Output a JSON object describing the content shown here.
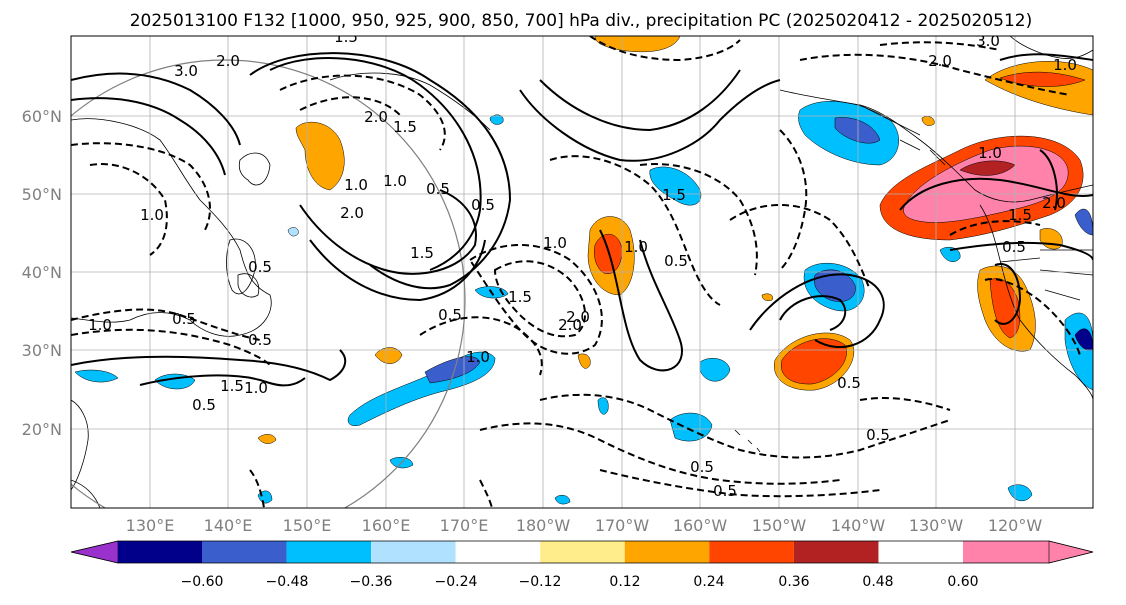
{
  "title": "2025013100 F132 [1000, 950, 925, 900, 850, 700] hPa div., precipitation PC (2025020412 - 2025020512)",
  "lat_labels": [
    "60°N",
    "50°N",
    "40°N",
    "30°N",
    "20°N"
  ],
  "lon_labels": [
    "130°E",
    "140°E",
    "150°E",
    "160°E",
    "170°E",
    "180°W",
    "170°W",
    "160°W",
    "150°W",
    "140°W",
    "130°W",
    "120°W"
  ],
  "contour_labels": [
    "3.0",
    "2.0",
    "1.5",
    "2.0",
    "1.5",
    "0.5",
    "1.0",
    "0.5",
    "1.0",
    "1.5",
    "2.0",
    "0.5",
    "1.0",
    "0.5",
    "0.5",
    "1.0",
    "1.5",
    "0.5",
    "1.0",
    "2.0",
    "1.0",
    "1.5",
    "0.5",
    "1.0",
    "1.5",
    "0.5",
    "0.5",
    "0.5",
    "0.5",
    "0.5",
    "2.0",
    "1.0",
    "1.5",
    "2.0",
    "0.5",
    "1.0",
    "3.0",
    "2.0",
    "1.0"
  ],
  "colorbar": {
    "ticks": [
      "−0.60",
      "−0.48",
      "−0.36",
      "−0.24",
      "−0.12",
      "0.12",
      "0.24",
      "0.36",
      "0.48",
      "0.60"
    ],
    "colors": [
      "#9932cc",
      "#00008b",
      "#3a5fcd",
      "#00bfff",
      "#b0e2ff",
      "#ffffff",
      "#ffec8b",
      "#ffa500",
      "#ff4500",
      "#b22222",
      "#ff82ab"
    ]
  },
  "colors": {
    "land_lines": "#000000",
    "grid": "#b0b0b0",
    "tick_label": "#808080"
  }
}
